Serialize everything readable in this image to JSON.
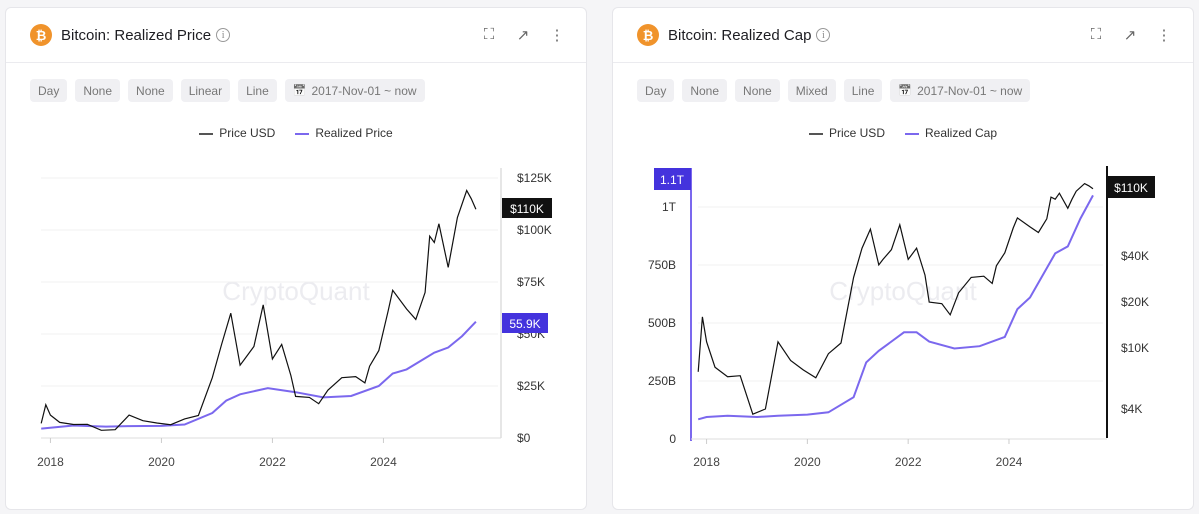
{
  "cards": [
    {
      "title": "Bitcoin: Realized Price",
      "logo": "₿",
      "options": [
        "Day",
        "None",
        "None",
        "Linear",
        "Line"
      ],
      "date_range": "2017-Nov-01 ~ now",
      "legend": [
        "Price USD",
        "Realized Price"
      ],
      "watermark": "CryptoQuant"
    },
    {
      "title": "Bitcoin: Realized Cap",
      "logo": "₿",
      "options": [
        "Day",
        "None",
        "None",
        "Mixed",
        "Line"
      ],
      "date_range": "2017-Nov-01 ~ now",
      "legend": [
        "Price USD",
        "Realized Cap"
      ],
      "watermark": "CryptoQuant"
    }
  ],
  "colors": {
    "price": "#111111",
    "realized": "#7b68ee",
    "badge_realized": "#4433dd",
    "badge_price": "#111111",
    "brand": "#f0932b"
  },
  "icons": [
    "bitcoin-logo-icon",
    "info-icon",
    "fullscreen-icon",
    "external-link-icon",
    "more-vertical-icon",
    "calendar-icon"
  ],
  "chart_data": [
    {
      "type": "line",
      "x_ticks": [
        "2018",
        "2020",
        "2022",
        "2024"
      ],
      "y_axis": {
        "side": "right",
        "scale": "linear",
        "ylim": [
          0,
          125000
        ],
        "ticks": [
          "$0",
          "$25K",
          "$50K",
          "$75K",
          "$100K",
          "$125K"
        ]
      },
      "badges": {
        "price": "$110K",
        "realized": "55.9K"
      },
      "series": [
        {
          "name": "Price USD",
          "unit": "USD",
          "points": [
            [
              "2017-11",
              7000
            ],
            [
              "2017-12",
              16000
            ],
            [
              "2018-01",
              11000
            ],
            [
              "2018-03",
              7500
            ],
            [
              "2018-06",
              6500
            ],
            [
              "2018-09",
              6600
            ],
            [
              "2018-12",
              3700
            ],
            [
              "2019-03",
              4000
            ],
            [
              "2019-06",
              11000
            ],
            [
              "2019-09",
              8300
            ],
            [
              "2019-12",
              7200
            ],
            [
              "2020-03",
              6400
            ],
            [
              "2020-06",
              9200
            ],
            [
              "2020-09",
              10800
            ],
            [
              "2020-12",
              29000
            ],
            [
              "2021-02",
              45000
            ],
            [
              "2021-04",
              60000
            ],
            [
              "2021-06",
              35000
            ],
            [
              "2021-07",
              38000
            ],
            [
              "2021-09",
              44000
            ],
            [
              "2021-11",
              64000
            ],
            [
              "2022-01",
              38000
            ],
            [
              "2022-03",
              45000
            ],
            [
              "2022-05",
              30000
            ],
            [
              "2022-06",
              20000
            ],
            [
              "2022-09",
              19500
            ],
            [
              "2022-11",
              16500
            ],
            [
              "2023-01",
              23000
            ],
            [
              "2023-04",
              29000
            ],
            [
              "2023-07",
              29500
            ],
            [
              "2023-09",
              26500
            ],
            [
              "2023-10",
              34500
            ],
            [
              "2023-12",
              42000
            ],
            [
              "2024-02",
              61000
            ],
            [
              "2024-03",
              71000
            ],
            [
              "2024-06",
              62000
            ],
            [
              "2024-08",
              57000
            ],
            [
              "2024-10",
              70000
            ],
            [
              "2024-11",
              97000
            ],
            [
              "2024-12",
              94000
            ],
            [
              "2025-01",
              103000
            ],
            [
              "2025-03",
              82000
            ],
            [
              "2025-04",
              94000
            ],
            [
              "2025-05",
              106000
            ],
            [
              "2025-07",
              119000
            ],
            [
              "2025-08",
              115000
            ],
            [
              "2025-09",
              110000
            ]
          ]
        },
        {
          "name": "Realized Price",
          "unit": "USD",
          "points": [
            [
              "2017-11",
              4500
            ],
            [
              "2018-06",
              6000
            ],
            [
              "2019-01",
              5500
            ],
            [
              "2019-06",
              5700
            ],
            [
              "2020-01",
              5800
            ],
            [
              "2020-06",
              6500
            ],
            [
              "2020-12",
              12000
            ],
            [
              "2021-03",
              18000
            ],
            [
              "2021-06",
              21000
            ],
            [
              "2021-12",
              24000
            ],
            [
              "2022-06",
              22000
            ],
            [
              "2022-12",
              19500
            ],
            [
              "2023-06",
              20200
            ],
            [
              "2023-12",
              25000
            ],
            [
              "2024-03",
              31000
            ],
            [
              "2024-06",
              33000
            ],
            [
              "2024-12",
              41000
            ],
            [
              "2025-03",
              43500
            ],
            [
              "2025-06",
              49000
            ],
            [
              "2025-09",
              55900
            ]
          ]
        }
      ]
    },
    {
      "type": "line",
      "x_ticks": [
        "2018",
        "2020",
        "2022",
        "2024"
      ],
      "y_axis_left": {
        "scale": "linear",
        "ylim": [
          0,
          1100000000000
        ],
        "ticks": [
          "0",
          "250B",
          "500B",
          "750B",
          "1T"
        ]
      },
      "y_axis_right": {
        "scale": "log",
        "ticks": [
          "$4K",
          "$10K",
          "$20K",
          "$40K"
        ]
      },
      "badges": {
        "realized": "1.1T",
        "price": "$110K"
      },
      "series": [
        {
          "name": "Price USD",
          "axis": "right",
          "ref": "Price USD"
        },
        {
          "name": "Realized Cap",
          "axis": "left",
          "unit": "USD billions",
          "points": [
            [
              "2017-11",
              85
            ],
            [
              "2018-01",
              95
            ],
            [
              "2018-06",
              100
            ],
            [
              "2019-01",
              95
            ],
            [
              "2019-06",
              100
            ],
            [
              "2020-01",
              105
            ],
            [
              "2020-06",
              115
            ],
            [
              "2020-12",
              180
            ],
            [
              "2021-03",
              330
            ],
            [
              "2021-06",
              380
            ],
            [
              "2021-12",
              460
            ],
            [
              "2022-03",
              460
            ],
            [
              "2022-06",
              420
            ],
            [
              "2022-12",
              390
            ],
            [
              "2023-06",
              400
            ],
            [
              "2023-12",
              440
            ],
            [
              "2024-03",
              560
            ],
            [
              "2024-06",
              610
            ],
            [
              "2024-12",
              800
            ],
            [
              "2025-03",
              830
            ],
            [
              "2025-06",
              950
            ],
            [
              "2025-09",
              1050
            ]
          ]
        }
      ]
    }
  ]
}
